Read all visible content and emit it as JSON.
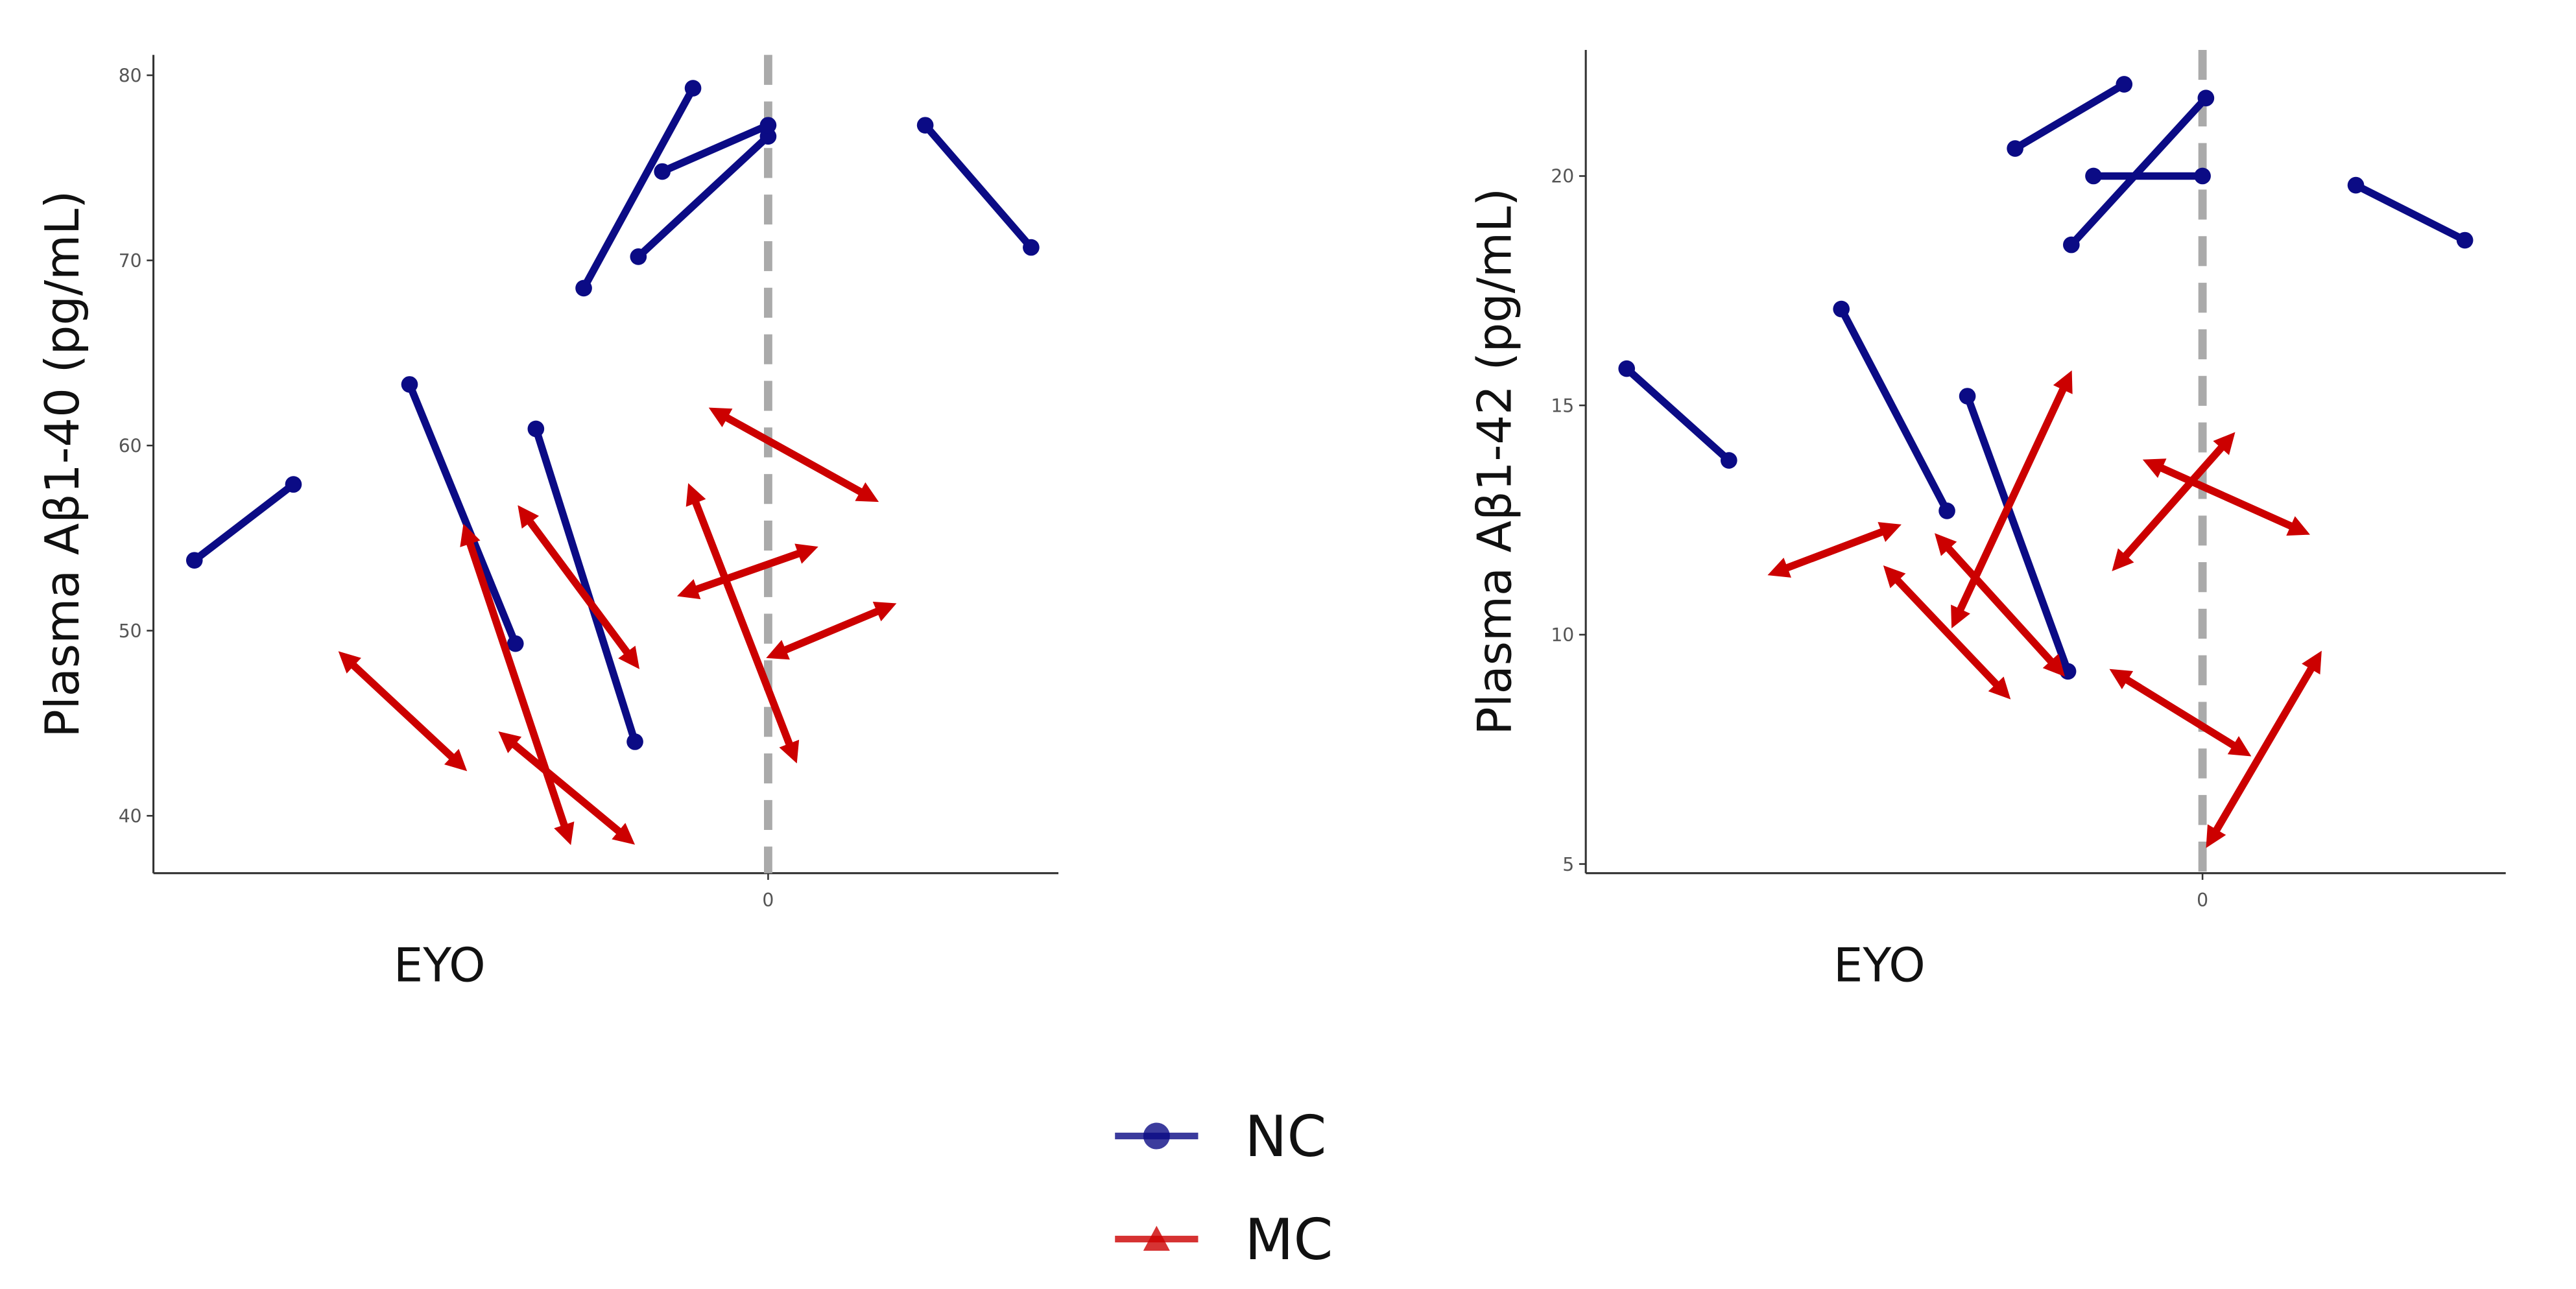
{
  "chart_data": [
    {
      "type": "line",
      "ylabel": "Plasma Aβ1-40 (pg/mL)",
      "xlabel": "EYO",
      "xlim": [
        -18,
        8.5
      ],
      "xticks": [
        0
      ],
      "ylim": [
        36.9,
        81.1
      ],
      "yticks": [
        40,
        50,
        60,
        70,
        80
      ],
      "vline": 0,
      "series": [
        {
          "name": "NC",
          "color": "#0b0b85",
          "marker": "circle",
          "pairs": [
            {
              "x": [
                -16.8,
                -13.9
              ],
              "values": [
                53.8,
                57.9
              ]
            },
            {
              "x": [
                -10.5,
                -7.4
              ],
              "values": [
                63.3,
                49.3
              ]
            },
            {
              "x": [
                -6.8,
                -3.9
              ],
              "values": [
                60.9,
                44.0
              ]
            },
            {
              "x": [
                -5.4,
                -2.2
              ],
              "values": [
                68.5,
                79.3
              ]
            },
            {
              "x": [
                -3.8,
                0
              ],
              "values": [
                70.2,
                76.7
              ]
            },
            {
              "x": [
                -3.1,
                0
              ],
              "values": [
                74.8,
                77.3
              ]
            },
            {
              "x": [
                4.6,
                7.7
              ],
              "values": [
                77.3,
                70.7
              ]
            }
          ]
        },
        {
          "name": "MC",
          "color": "#cc0000",
          "marker": "triangle",
          "pairs": [
            {
              "x": [
                -12.3,
                -9.1
              ],
              "values": [
                48.4,
                42.9
              ]
            },
            {
              "x": [
                -8.8,
                -5.9
              ],
              "values": [
                55.1,
                39.1
              ]
            },
            {
              "x": [
                -7.6,
                -4.2
              ],
              "values": [
                44.1,
                38.9
              ]
            },
            {
              "x": [
                -7.1,
                -4.0
              ],
              "values": [
                56.2,
                48.5
              ]
            },
            {
              "x": [
                -2.2,
                0.7
              ],
              "values": [
                57.3,
                43.5
              ]
            },
            {
              "x": [
                -2.3,
                1.1
              ],
              "values": [
                52.1,
                54.3
              ]
            },
            {
              "x": [
                -1.4,
                2.9
              ],
              "values": [
                61.7,
                57.3
              ]
            },
            {
              "x": [
                0.3,
                3.4
              ],
              "values": [
                48.8,
                51.2
              ]
            }
          ]
        }
      ]
    },
    {
      "type": "line",
      "ylabel": "Plasma Aβ1-42 (pg/mL)",
      "xlabel": "EYO",
      "xlim": [
        -18.1,
        8.9
      ],
      "xticks": [
        0
      ],
      "ylim": [
        4.8,
        22.75
      ],
      "yticks": [
        5,
        10,
        15,
        20
      ],
      "vline": 0,
      "series": [
        {
          "name": "NC",
          "color": "#0b0b85",
          "marker": "circle",
          "pairs": [
            {
              "x": [
                -16.9,
                -13.9
              ],
              "values": [
                15.8,
                13.8
              ]
            },
            {
              "x": [
                -10.6,
                -7.5
              ],
              "values": [
                17.1,
                12.7
              ]
            },
            {
              "x": [
                -6.9,
                -3.95
              ],
              "values": [
                15.2,
                9.2
              ]
            },
            {
              "x": [
                -5.5,
                -2.3
              ],
              "values": [
                20.6,
                22.0
              ]
            },
            {
              "x": [
                -3.85,
                0.1
              ],
              "values": [
                18.5,
                21.7
              ]
            },
            {
              "x": [
                -3.2,
                0
              ],
              "values": [
                20.0,
                20.0
              ]
            },
            {
              "x": [
                4.5,
                7.7
              ],
              "values": [
                19.8,
                18.6
              ]
            }
          ]
        },
        {
          "name": "MC",
          "color": "#cc0000",
          "marker": "triangle",
          "pairs": [
            {
              "x": [
                -12.4,
                -9.2
              ],
              "values": [
                11.4,
                12.3
              ]
            },
            {
              "x": [
                -9.1,
                -5.9
              ],
              "values": [
                11.3,
                8.8
              ]
            },
            {
              "x": [
                -7.6,
                -4.3
              ],
              "values": [
                12.0,
                9.3
              ]
            },
            {
              "x": [
                -7.2,
                -4.0
              ],
              "values": [
                10.4,
                15.5
              ]
            },
            {
              "x": [
                -2.4,
                1.1
              ],
              "values": [
                9.1,
                7.5
              ]
            },
            {
              "x": [
                -2.4,
                0.7
              ],
              "values": [
                11.6,
                14.2
              ]
            },
            {
              "x": [
                -1.4,
                2.8
              ],
              "values": [
                13.7,
                12.3
              ]
            },
            {
              "x": [
                0.3,
                3.3
              ],
              "values": [
                5.6,
                9.4
              ]
            }
          ]
        }
      ]
    }
  ]
}
